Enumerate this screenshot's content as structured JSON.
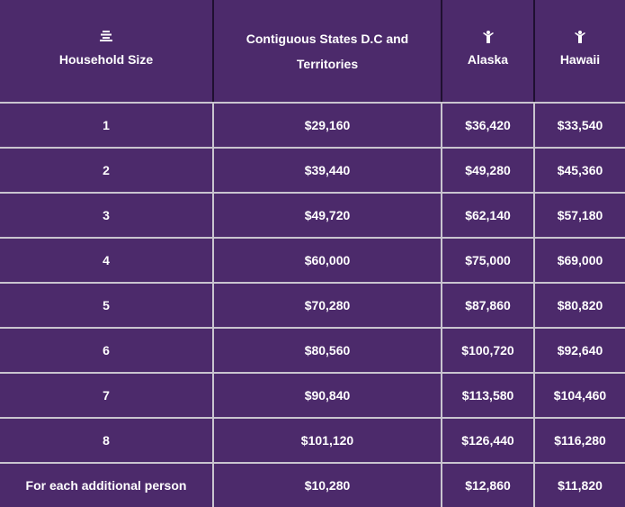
{
  "columns": [
    {
      "label": "Household Size",
      "icon": "list-icon"
    },
    {
      "label": "Contiguous States D.C and Territories"
    },
    {
      "label": "Alaska",
      "icon": "person-icon"
    },
    {
      "label": "Hawaii",
      "icon": "person-icon"
    }
  ],
  "rows": [
    [
      "1",
      "$29,160",
      "$36,420",
      "$33,540"
    ],
    [
      "2",
      "$39,440",
      "$49,280",
      "$45,360"
    ],
    [
      "3",
      "$49,720",
      "$62,140",
      "$57,180"
    ],
    [
      "4",
      "$60,000",
      "$75,000",
      "$69,000"
    ],
    [
      "5",
      "$70,280",
      "$87,860",
      "$80,820"
    ],
    [
      "6",
      "$80,560",
      "$100,720",
      "$92,640"
    ],
    [
      "7",
      "$90,840",
      "$113,580",
      "$104,460"
    ],
    [
      "8",
      "$101,120",
      "$126,440",
      "$116,280"
    ],
    [
      "For each additional person",
      "$10,280",
      "$12,860",
      "$11,820"
    ]
  ],
  "colors": {
    "background": "#4c2a6b",
    "text": "#ffffff",
    "grid": "#c9c4cf",
    "header_divider": "#1f1030"
  }
}
